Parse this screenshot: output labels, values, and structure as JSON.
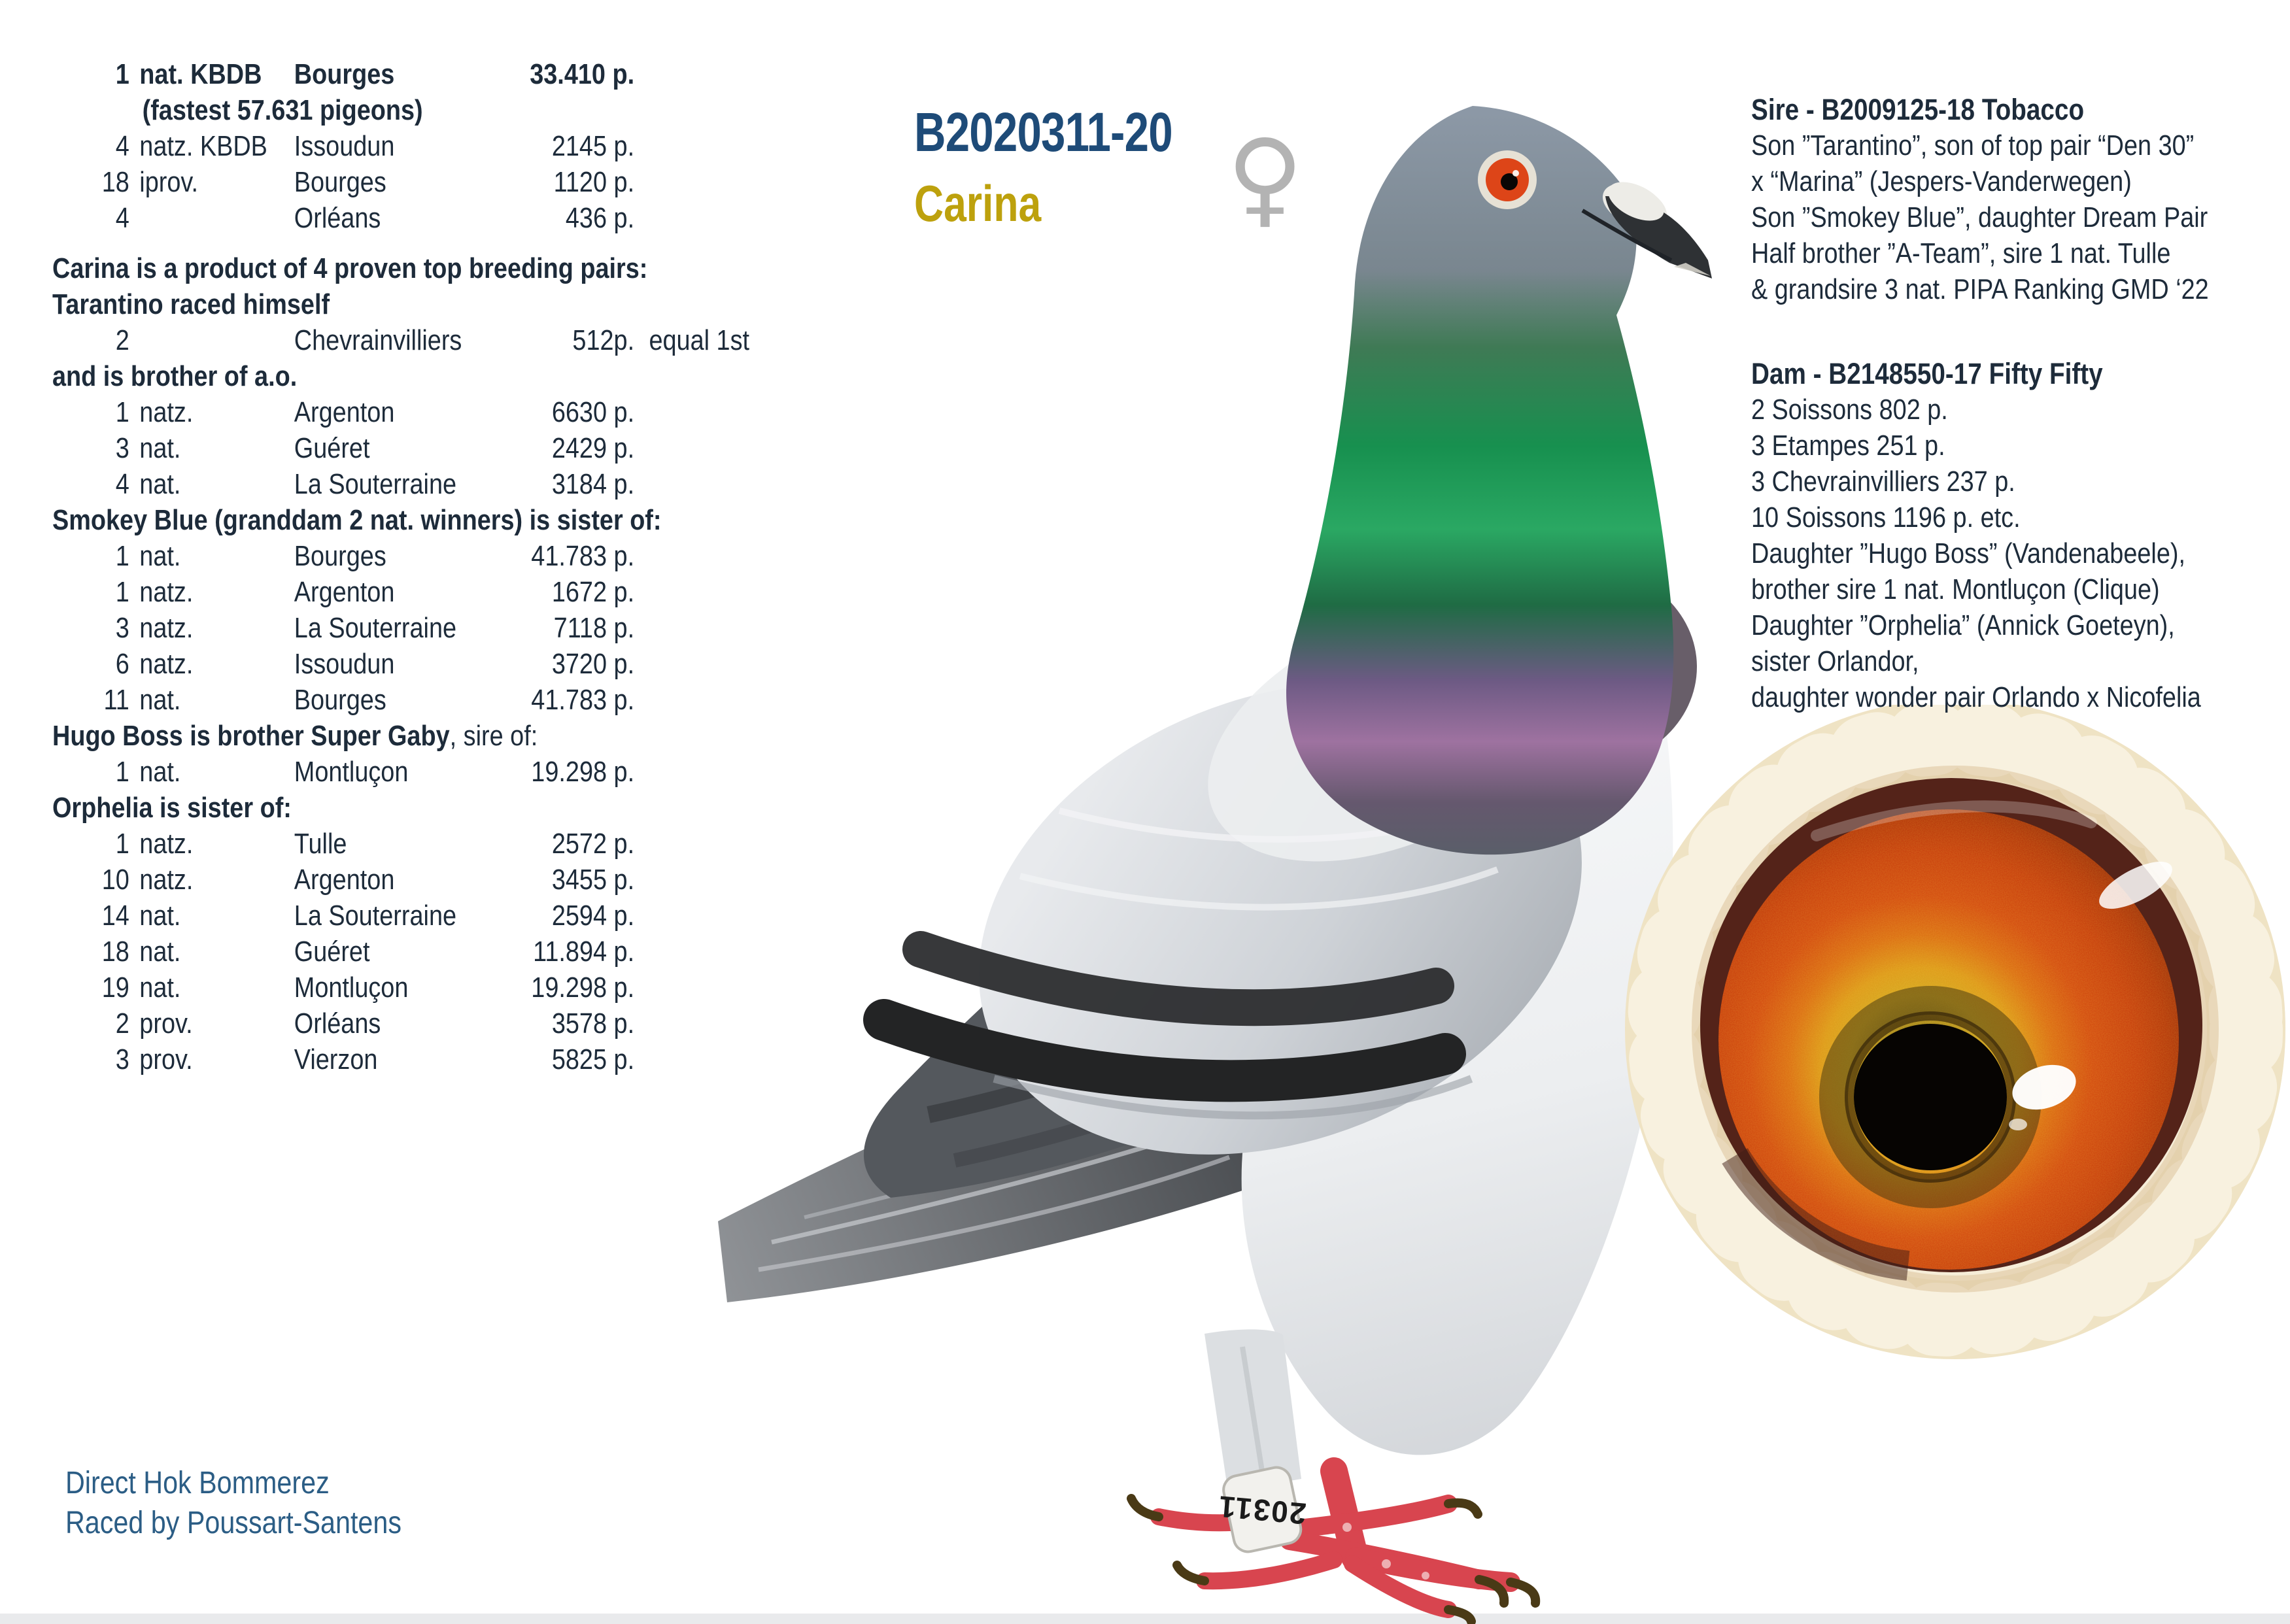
{
  "header": {
    "ring_number": "B2020311-20",
    "name": "Carina",
    "sex_symbol": "♀"
  },
  "results": {
    "lines": [
      {
        "type": "row",
        "bold": true,
        "pos": "1",
        "cls": "nat. KBDB",
        "place": "Bourges",
        "points": "33.410 p.",
        "note": ""
      },
      {
        "type": "note",
        "text": "(fastest 57.631 pigeons)"
      },
      {
        "type": "row",
        "pos": "4",
        "cls": "natz. KBDB",
        "place": "Issoudun",
        "points": "2145 p.",
        "note": ""
      },
      {
        "type": "row",
        "pos": "18",
        "cls": "iprov.",
        "place": "Bourges",
        "points": "1120 p.",
        "note": ""
      },
      {
        "type": "row",
        "pos": "4",
        "cls": "",
        "place": "Orléans",
        "points": "436 p.",
        "note": ""
      },
      {
        "type": "heading",
        "gap": true,
        "text": "Carina is a product of 4 proven top breeding pairs:"
      },
      {
        "type": "heading",
        "text": "Tarantino raced himself"
      },
      {
        "type": "row",
        "pos": "2",
        "cls": "",
        "place": "Chevrainvilliers",
        "points": "512p.",
        "note": "equal 1st"
      },
      {
        "type": "heading",
        "text": "and is brother of a.o."
      },
      {
        "type": "row",
        "pos": "1",
        "cls": "natz.",
        "place": "Argenton",
        "points": "6630 p.",
        "note": ""
      },
      {
        "type": "row",
        "pos": "3",
        "cls": "nat.",
        "place": "Guéret",
        "points": "2429 p.",
        "note": ""
      },
      {
        "type": "row",
        "pos": "4",
        "cls": "nat.",
        "place": "La Souterraine",
        "points": "3184 p.",
        "note": ""
      },
      {
        "type": "heading",
        "text": "Smokey Blue (granddam 2 nat. winners) is sister of:"
      },
      {
        "type": "row",
        "pos": "1",
        "cls": "nat.",
        "place": "Bourges",
        "points": "41.783 p.",
        "note": ""
      },
      {
        "type": "row",
        "pos": "1",
        "cls": "natz.",
        "place": "Argenton",
        "points": "1672 p.",
        "note": ""
      },
      {
        "type": "row",
        "pos": "3",
        "cls": "natz.",
        "place": "La Souterraine",
        "points": "7118 p.",
        "note": ""
      },
      {
        "type": "row",
        "pos": "6",
        "cls": "natz.",
        "place": "Issoudun",
        "points": "3720 p.",
        "note": ""
      },
      {
        "type": "row",
        "pos": "11",
        "cls": "nat.",
        "place": "Bourges",
        "points": "41.783 p.",
        "note": ""
      },
      {
        "type": "heading_mixed",
        "bold": "Hugo Boss is brother Super Gaby",
        "rest": ", sire of:"
      },
      {
        "type": "row",
        "pos": "1",
        "cls": "nat.",
        "place": "Montluçon",
        "points": "19.298 p.",
        "note": ""
      },
      {
        "type": "heading",
        "text": "Orphelia is sister of:"
      },
      {
        "type": "row",
        "pos": "1",
        "cls": "natz.",
        "place": "Tulle",
        "points": "2572 p.",
        "note": ""
      },
      {
        "type": "row",
        "pos": "10",
        "cls": "natz.",
        "place": "Argenton",
        "points": "3455 p.",
        "note": ""
      },
      {
        "type": "row",
        "pos": "14",
        "cls": "nat.",
        "place": "La Souterraine",
        "points": "2594 p.",
        "note": ""
      },
      {
        "type": "row",
        "pos": "18",
        "cls": "nat.",
        "place": "Guéret",
        "points": "11.894 p.",
        "note": ""
      },
      {
        "type": "row",
        "pos": "19",
        "cls": "nat.",
        "place": "Montluçon",
        "points": "19.298 p.",
        "note": ""
      },
      {
        "type": "row",
        "pos": "2",
        "cls": "prov.",
        "place": "Orléans",
        "points": "3578 p.",
        "note": ""
      },
      {
        "type": "row",
        "pos": "3",
        "cls": "prov.",
        "place": "Vierzon",
        "points": "5825 p.",
        "note": ""
      }
    ]
  },
  "sire": {
    "title": "Sire - B2009125-18 Tobacco",
    "lines": [
      "Son ”Tarantino”, son of top pair “Den 30”",
      "x “Marina” (Jespers-Vanderwegen)",
      "Son ”Smokey Blue”, daughter Dream Pair",
      "Half brother ”A-Team”, sire 1 nat. Tulle",
      "& grandsire 3 nat. PIPA Ranking GMD ‘22"
    ]
  },
  "dam": {
    "title": "Dam - B2148550-17 Fifty Fifty",
    "lines": [
      "2 Soissons 802 p.",
      "3 Etampes 251 p.",
      "3 Chevrainvilliers 237 p.",
      "10 Soissons 1196 p. etc.",
      "Daughter ”Hugo Boss” (Vandenabeele),",
      "brother sire 1 nat. Montluçon (Clique)",
      "Daughter ”Orphelia” (Annick Goeteyn),",
      "sister Orlandor,",
      "daughter wonder pair Orlando x Nicofelia"
    ]
  },
  "footer": {
    "line1": "Direct Hok Bommerez",
    "line2": "Raced by Poussart-Santens"
  },
  "pigeon": {
    "band_text": "20311"
  },
  "colors": {
    "ring_number_blue": "#1e4b78",
    "name_gold": "#bda10d",
    "text_dark": "#1d2b3a",
    "footer_blue": "#2b5d85",
    "sex_symbol_gray": "#b3b3b3",
    "eye_iris_red": "#d2470e",
    "eye_iris_gold": "#d4a41e",
    "neck_green": "#17904f",
    "neck_purple": "#9e72a0"
  }
}
